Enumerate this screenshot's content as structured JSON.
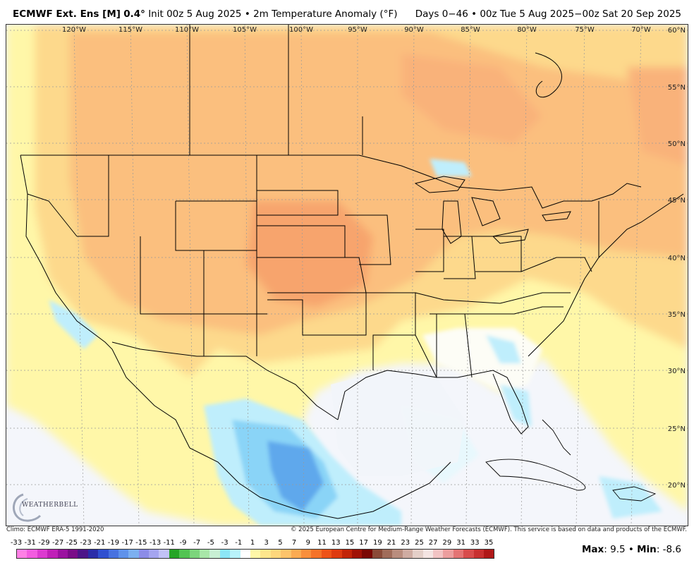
{
  "header": {
    "model": "ECMWF Ext. Ens [M]",
    "resolution": "0.4°",
    "init": "Init 00z 5 Aug 2025",
    "bullet": "•",
    "variable": "2m Temperature Anomaly (°F)",
    "range_days": "Days 0−46",
    "valid_range": "00z Tue 5 Aug 2025−00z Sat 20 Sep 2025"
  },
  "map": {
    "lon_labels": [
      "120°W",
      "115°W",
      "110°W",
      "105°W",
      "100°W",
      "95°W",
      "90°W",
      "85°W",
      "80°W",
      "75°W",
      "70°W"
    ],
    "lat_labels": [
      "60°N",
      "55°N",
      "50°N",
      "45°N",
      "40°N",
      "35°N",
      "30°N",
      "25°N",
      "20°N"
    ],
    "colors": {
      "ocean": "#f4f6fb",
      "warm_light": "#fff7a8",
      "warm_mid": "#fdd98c",
      "warm_orange": "#fbbf7e",
      "warm_strong": "#f7a46d",
      "cool_light": "#bfeefc",
      "cool_mid": "#8ad4f7",
      "cool_strong": "#5ea8ec",
      "border": "#000000",
      "grid": "#9a9a9a"
    }
  },
  "footer": {
    "climo": "Climo: ECMWF ERA-5 1991-2020",
    "copyright": "© 2025 European Centre for Medium-Range Weather Forecasts (ECMWF). This service is based on data and products of the ECMWF."
  },
  "logo": {
    "text": "WEATHERBELL",
    "icon": "weatherbell-swirl-logo"
  },
  "scale": {
    "labels": [
      "-33",
      "-31",
      "-29",
      "-27",
      "-25",
      "-23",
      "-21",
      "-19",
      "-17",
      "-15",
      "-13",
      "-11",
      "-9",
      "-7",
      "-5",
      "-3",
      "-1",
      "1",
      "3",
      "5",
      "7",
      "9",
      "11",
      "13",
      "15",
      "17",
      "19",
      "21",
      "23",
      "25",
      "27",
      "29",
      "31",
      "33",
      "35"
    ],
    "colors": [
      "#ff80e6",
      "#f35ce0",
      "#dc3ad0",
      "#c020b8",
      "#9b12a0",
      "#7a0c88",
      "#4c1488",
      "#2a2ca8",
      "#3050d0",
      "#4872e0",
      "#5f92ea",
      "#7cb0f0",
      "#8c8ce8",
      "#a5a5f0",
      "#c2c2f6",
      "#26a526",
      "#52c452",
      "#7cd57c",
      "#a8e6a8",
      "#c8f0d4",
      "#8ce6f6",
      "#b8f3fb",
      "#ffffff",
      "#fff7a8",
      "#fde68c",
      "#fdd77c",
      "#fcc36a",
      "#fbab52",
      "#f98f3c",
      "#f57228",
      "#ee5318",
      "#de3a10",
      "#c22408",
      "#a01206",
      "#7a0804",
      "#8a4a38",
      "#a06c5a",
      "#b98d7e",
      "#cfaca2",
      "#e4cfc8",
      "#f4e4e2",
      "#f2c4c4",
      "#ec9e9e",
      "#e47474",
      "#d84c4c",
      "#c83030",
      "#b01818"
    ]
  },
  "stats": {
    "max_label": "Max",
    "max_value": ": 9.5",
    "bullet": " • ",
    "min_label": "Min",
    "min_value": ": -8.6"
  }
}
